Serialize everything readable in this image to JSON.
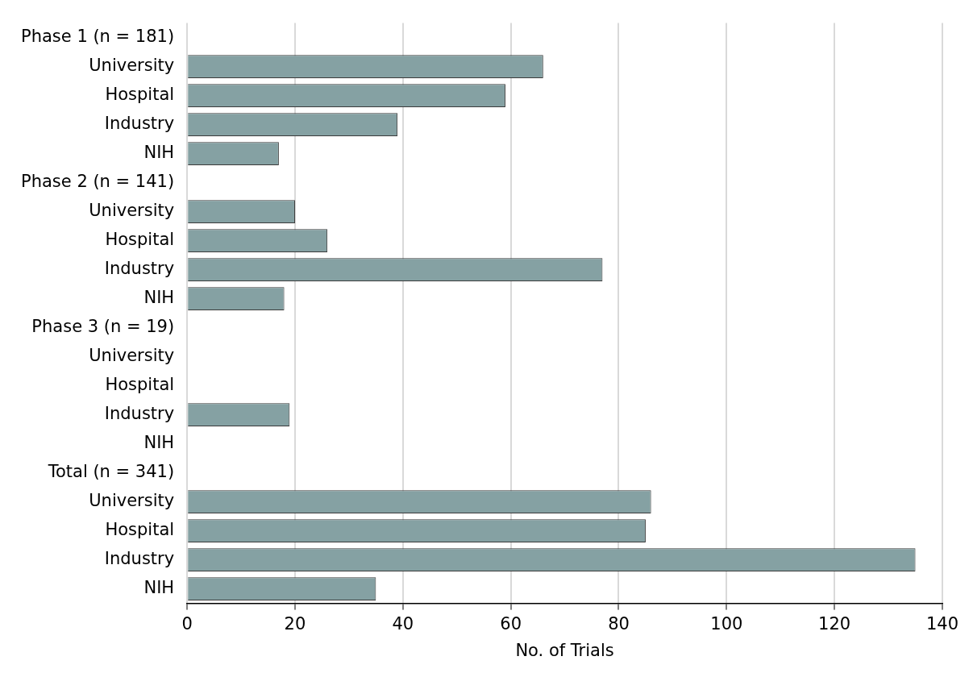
{
  "chart_data": {
    "type": "bar",
    "orientation": "horizontal",
    "xlabel": "No. of Trials",
    "categories": [
      "Phase 1 (n = 181)",
      "University",
      "Hospital",
      "Industry",
      "NIH",
      "Phase 2 (n = 141)",
      "University",
      "Hospital",
      "Industry",
      "NIH",
      "Phase 3 (n = 19)",
      "University",
      "Hospital",
      "Industry",
      "NIH",
      "Total (n = 341)",
      "University",
      "Hospital",
      "Industry",
      "NIH"
    ],
    "values": [
      null,
      66,
      59,
      39,
      17,
      null,
      20,
      26,
      77,
      18,
      null,
      0,
      0,
      19,
      0,
      null,
      86,
      85,
      135,
      35
    ],
    "color": "#85a1a3",
    "xlim": [
      0,
      140
    ],
    "xticks": [
      0,
      20,
      40,
      60,
      80,
      100,
      120,
      140
    ],
    "grid": "x",
    "legend": false
  }
}
